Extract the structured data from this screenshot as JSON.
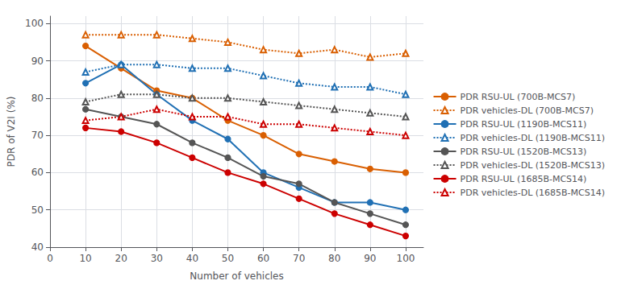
{
  "chart_data": {
    "type": "line",
    "xlabel": "Number of vehicles",
    "ylabel": "PDR of V2I (%)",
    "x": [
      10,
      20,
      30,
      40,
      50,
      60,
      70,
      80,
      90,
      100
    ],
    "series": [
      {
        "name": "PDR RSU-UL (700B-MCS7)",
        "color": "#d95f02",
        "line_style": "solid",
        "marker": "circle",
        "values": [
          94,
          88,
          82,
          80,
          74,
          70,
          65,
          63,
          61,
          60
        ]
      },
      {
        "name": "PDR vehicles-DL (700B-MCS7)",
        "color": "#d95f02",
        "line_style": "dotted",
        "marker": "triangle",
        "values": [
          97,
          97,
          97,
          96,
          95,
          93,
          92,
          93,
          91,
          92
        ]
      },
      {
        "name": "PDR RSU-UL (1190B-MCS11)",
        "color": "#2070b4",
        "line_style": "solid",
        "marker": "circle",
        "values": [
          84,
          89,
          81,
          74,
          69,
          60,
          56,
          52,
          52,
          50
        ]
      },
      {
        "name": "PDR vehicles-DL (1190B-MCS11)",
        "color": "#2070b4",
        "line_style": "dotted",
        "marker": "triangle",
        "values": [
          87,
          89,
          89,
          88,
          88,
          86,
          84,
          83,
          83,
          81
        ]
      },
      {
        "name": "PDR RSU-UL (1520B-MCS13)",
        "color": "#555555",
        "line_style": "solid",
        "marker": "circle",
        "values": [
          77,
          75,
          73,
          68,
          64,
          59,
          57,
          52,
          49,
          46
        ]
      },
      {
        "name": "PDR vehicles-DL (1520B-MCS13)",
        "color": "#555555",
        "line_style": "dotted",
        "marker": "triangle",
        "values": [
          79,
          81,
          81,
          80,
          80,
          79,
          78,
          77,
          76,
          75
        ]
      },
      {
        "name": "PDR RSU-UL (1685B-MCS14)",
        "color": "#cc0000",
        "line_style": "solid",
        "marker": "circle",
        "values": [
          72,
          71,
          68,
          64,
          60,
          57,
          53,
          49,
          46,
          43
        ]
      },
      {
        "name": "PDR vehicles-DL (1685B-MCS14)",
        "color": "#cc0000",
        "line_style": "dotted",
        "marker": "triangle",
        "values": [
          74,
          75,
          77,
          75,
          75,
          73,
          73,
          72,
          71,
          70
        ]
      }
    ],
    "xlim": [
      0,
      105
    ],
    "ylim": [
      40,
      102
    ],
    "xticks": [
      0,
      10,
      20,
      30,
      40,
      50,
      60,
      70,
      80,
      90,
      100
    ],
    "yticks": [
      40,
      50,
      60,
      70,
      80,
      90,
      100
    ],
    "grid": true,
    "legend": "right"
  }
}
